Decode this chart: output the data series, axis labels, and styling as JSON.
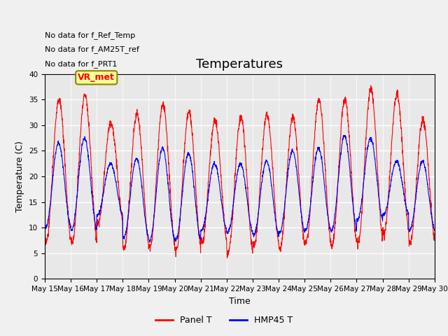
{
  "title": "Temperatures",
  "xlabel": "Time",
  "ylabel": "Temperature (C)",
  "ylim": [
    0,
    40
  ],
  "annotations": [
    "No data for f_Ref_Temp",
    "No data for f_AM25T_ref",
    "No data for f_PRT1"
  ],
  "vr_met_label": "VR_met",
  "panel_t_color": "#ff0000",
  "hmp45_t_color": "#0000ff",
  "bg_color": "#e8e8e8",
  "legend_labels": [
    "Panel T",
    "HMP45 T"
  ],
  "tick_labels": [
    "May 15",
    "May 16",
    "May 17",
    "May 18",
    "May 19",
    "May 20",
    "May 21",
    "May 22",
    "May 23",
    "May 24",
    "May 25",
    "May 26",
    "May 27",
    "May 28",
    "May 29",
    "May 30"
  ],
  "yticks": [
    0,
    5,
    10,
    15,
    20,
    25,
    30,
    35,
    40
  ],
  "title_fontsize": 13,
  "annotation_fontsize": 8,
  "axis_label_fontsize": 9,
  "tick_fontsize": 7.5
}
